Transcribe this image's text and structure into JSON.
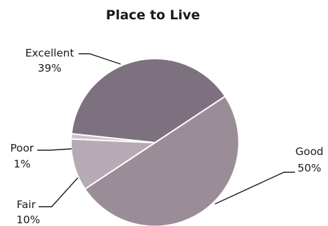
{
  "chart_data": {
    "type": "pie",
    "title": "Place to Live",
    "slices": [
      {
        "label": "Excellent",
        "percent_label": "39%",
        "value": 39,
        "color": "#7d717f"
      },
      {
        "label": "Good",
        "percent_label": "50%",
        "value": 50,
        "color": "#9a8d98"
      },
      {
        "label": "Fair",
        "percent_label": "10%",
        "value": 10,
        "color": "#b6abb4"
      },
      {
        "label": "Poor",
        "percent_label": "1%",
        "value": 1,
        "color": "#ccc4ca"
      }
    ]
  }
}
